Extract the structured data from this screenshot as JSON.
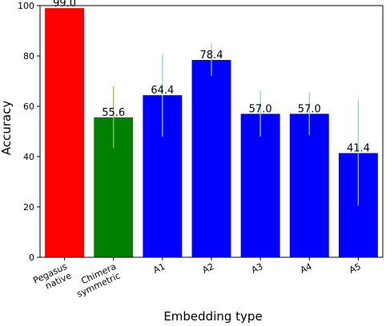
{
  "chart_data": {
    "type": "bar",
    "title": "",
    "xlabel": "Embedding type",
    "ylabel": "Accuracy",
    "ylim": [
      0,
      100
    ],
    "yticks": [
      0,
      20,
      40,
      60,
      80,
      100
    ],
    "grid": false,
    "categories": [
      [
        "Pegasus",
        "native"
      ],
      [
        "Chimera",
        "symmetric"
      ],
      [
        "A1"
      ],
      [
        "A2"
      ],
      [
        "A3"
      ],
      [
        "A4"
      ],
      [
        "A5"
      ]
    ],
    "values": [
      99.0,
      55.6,
      64.4,
      78.4,
      57.0,
      57.0,
      41.4
    ],
    "value_labels": [
      "99.0",
      "55.6",
      "64.4",
      "78.4",
      "57.0",
      "57.0",
      "41.4"
    ],
    "error_bars": [
      null,
      {
        "low": 43.5,
        "high": 68.0
      },
      {
        "low": 48.0,
        "high": 80.5
      },
      {
        "low": 72.0,
        "high": 85.0
      },
      {
        "low": 48.0,
        "high": 66.0
      },
      {
        "low": 48.5,
        "high": 65.5
      },
      {
        "low": 20.5,
        "high": 62.5
      }
    ],
    "bar_colors": [
      "#ff0000",
      "#008000",
      "#0000ff",
      "#0000ff",
      "#0000ff",
      "#0000ff",
      "#0000ff"
    ],
    "error_colors": [
      "#87ceeb",
      "#9acd32",
      "#87ceeb",
      "#87ceeb",
      "#87ceeb",
      "#87ceeb",
      "#87ceeb"
    ]
  }
}
